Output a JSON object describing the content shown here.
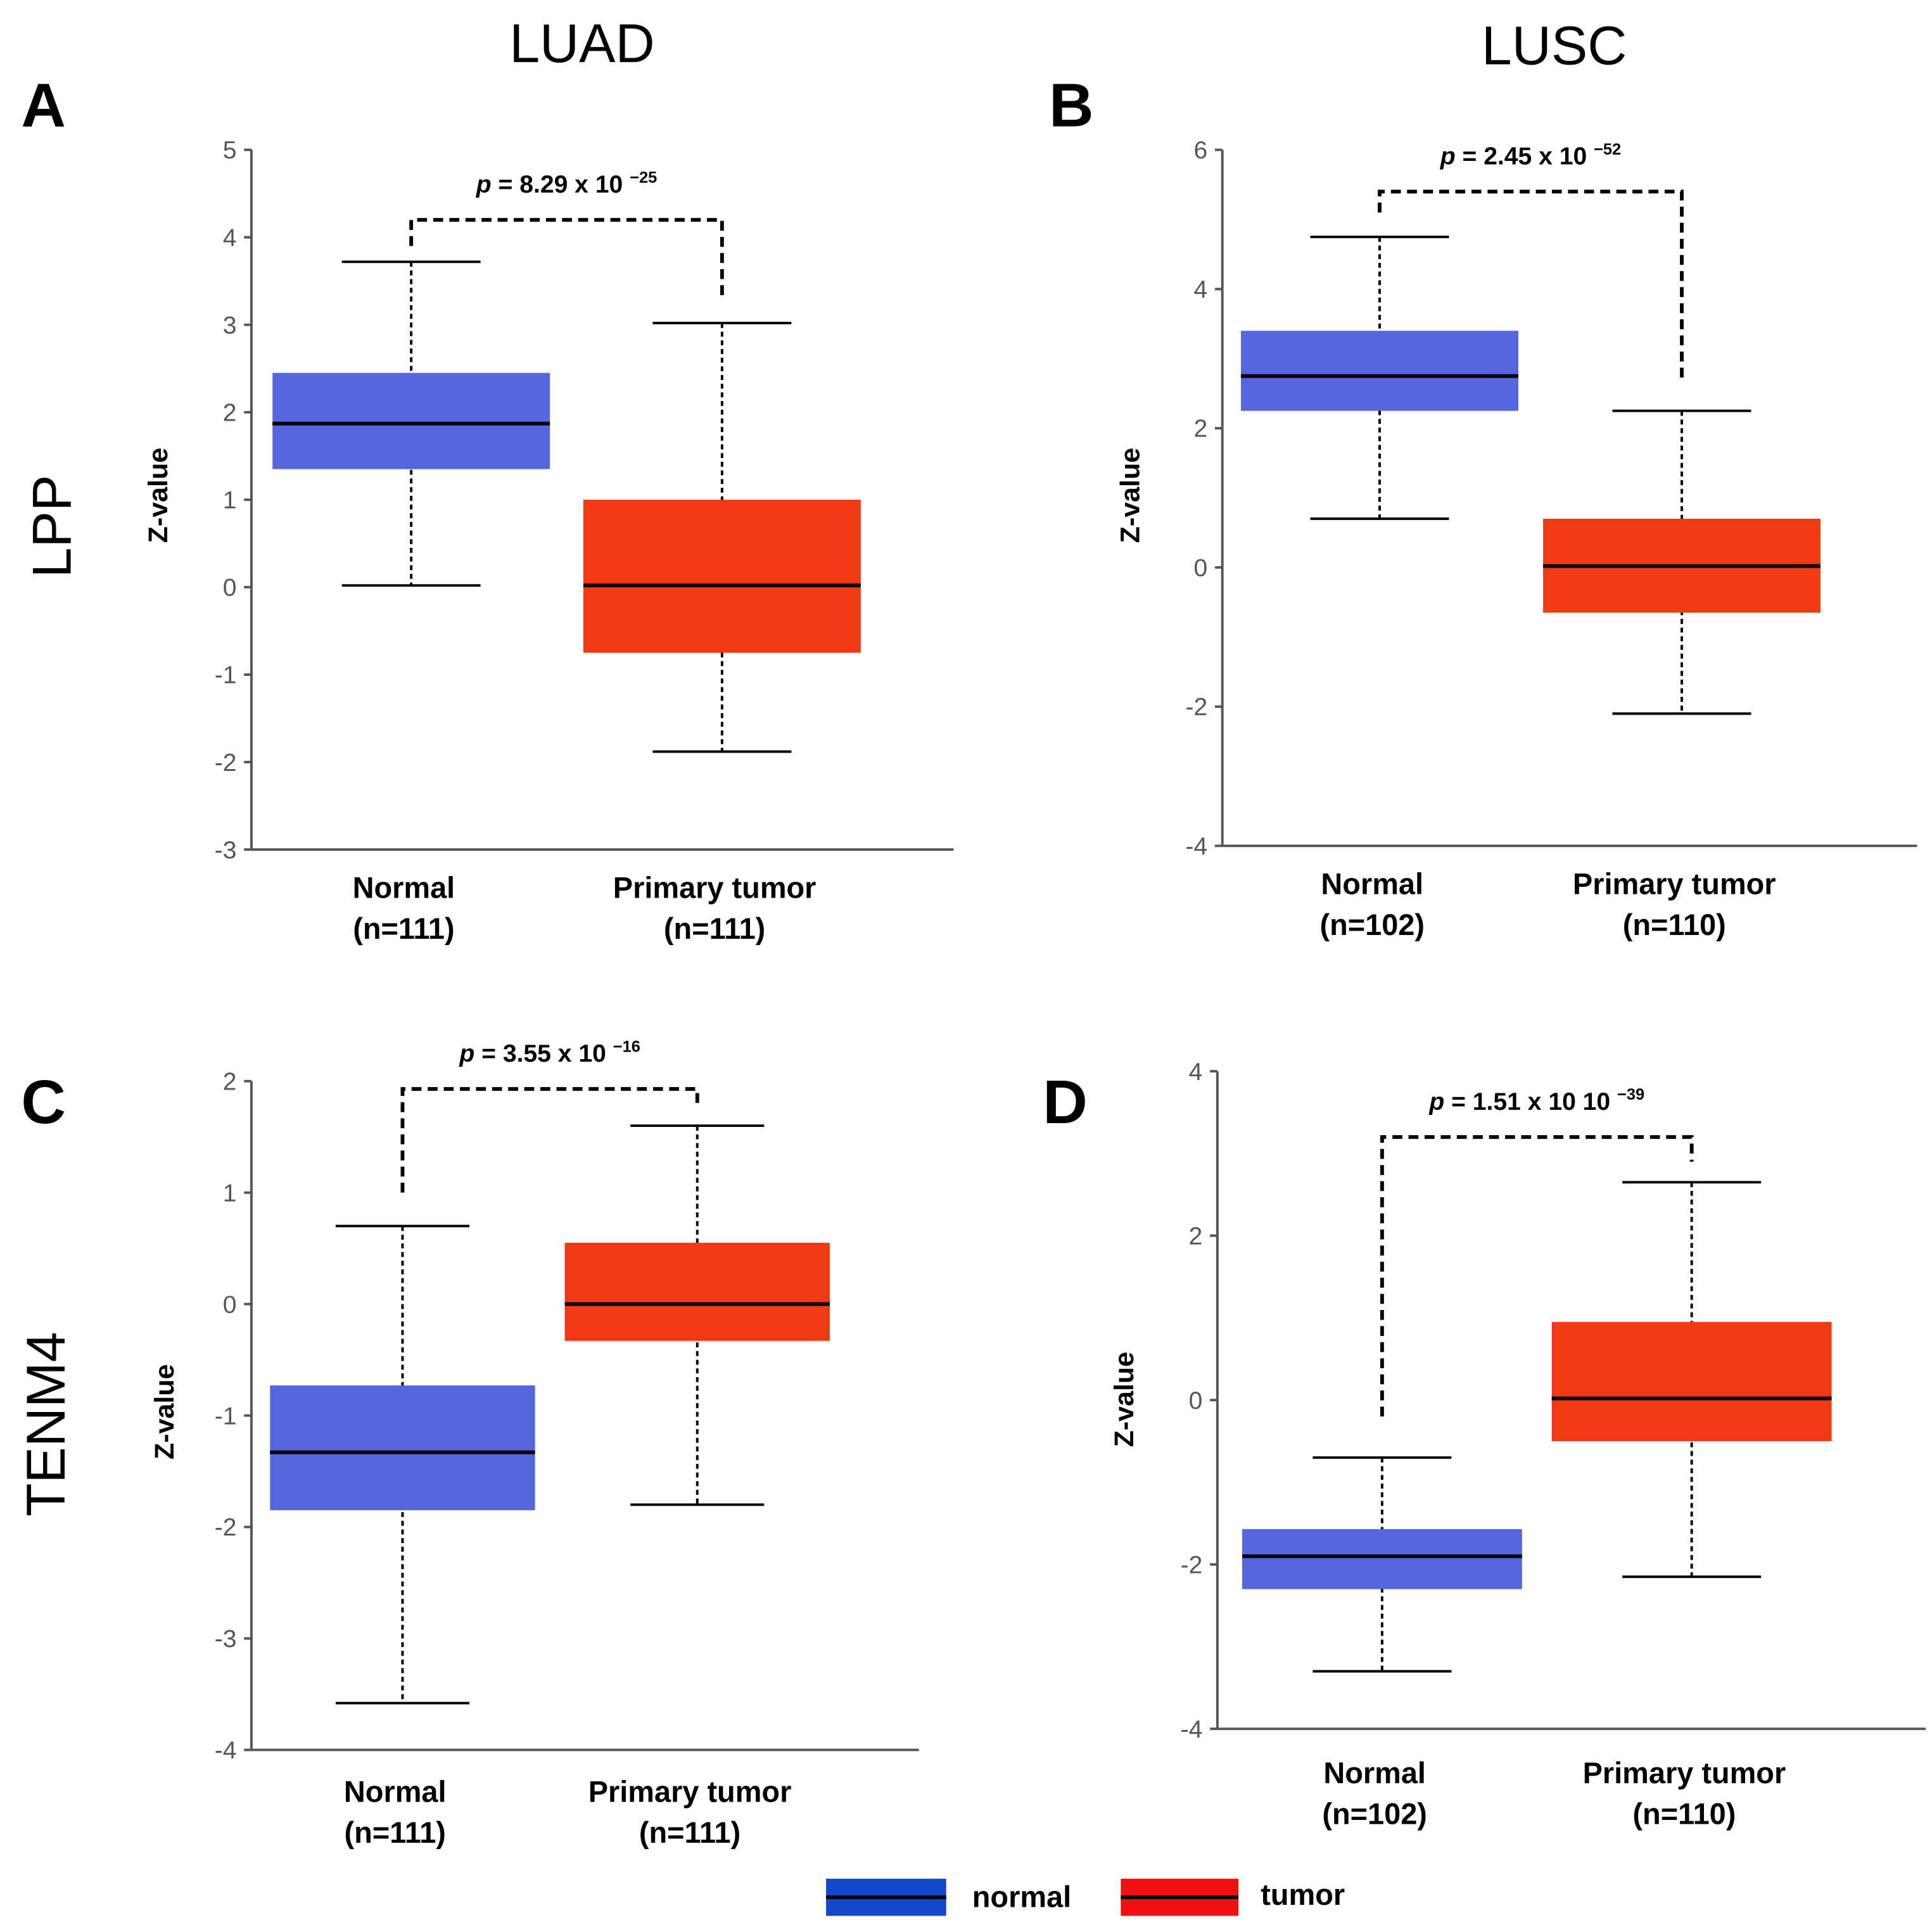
{
  "column_titles": [
    "LUAD",
    "LUSC"
  ],
  "row_titles": [
    "LPP",
    "TENM4"
  ],
  "legend": {
    "normal": "normal",
    "tumor": "tumor"
  },
  "colors": {
    "normal": "#5466e0",
    "tumor": "#f03a14",
    "legend_normal": "#1448c8",
    "legend_tumor": "#f01010"
  },
  "chart_data": [
    {
      "type": "box",
      "panel": "A",
      "gene": "LPP",
      "cancer": "LUAD",
      "ylabel": "Z-value",
      "ylim": [
        -3,
        5
      ],
      "yticks": [
        5,
        4,
        3,
        2,
        1,
        0,
        -1,
        -2,
        -3
      ],
      "p_value": {
        "prefix": "p",
        "text": " =  8.29 x 10 ",
        "exp": "−25"
      },
      "categories": [
        {
          "name": "Normal",
          "n": "(n=111)"
        },
        {
          "name": "Primary tumor",
          "n": "(n=111)"
        }
      ],
      "boxes": [
        {
          "max": 3.72,
          "q3": 2.45,
          "median": 1.87,
          "q1": 1.35,
          "min": 0.02
        },
        {
          "max": 3.02,
          "q3": 1.0,
          "median": 0.02,
          "q1": -0.75,
          "min": -1.88
        }
      ],
      "bracket": {
        "top": 4.2,
        "left_end": 3.9,
        "right_end": 3.3
      }
    },
    {
      "type": "box",
      "panel": "B",
      "gene": "LPP",
      "cancer": "LUSC",
      "ylabel": "Z-value",
      "ylim": [
        -4,
        6
      ],
      "yticks": [
        6,
        4,
        2,
        0,
        -2,
        -4
      ],
      "p_value": {
        "prefix": "p",
        "text": " = 2.45 x 10 ",
        "exp": "−52"
      },
      "categories": [
        {
          "name": "Normal",
          "n": "(n=102)"
        },
        {
          "name": "Primary tumor",
          "n": "(n=110)"
        }
      ],
      "boxes": [
        {
          "max": 4.75,
          "q3": 3.4,
          "median": 2.75,
          "q1": 2.25,
          "min": 0.7
        },
        {
          "max": 2.25,
          "q3": 0.7,
          "median": 0.02,
          "q1": -0.65,
          "min": -2.1
        }
      ],
      "bracket": {
        "top": 5.4,
        "left_end": 5.1,
        "right_end": 2.7
      }
    },
    {
      "type": "box",
      "panel": "C",
      "gene": "TENM4",
      "cancer": "LUAD",
      "ylabel": "Z-value",
      "ylim": [
        -4,
        2
      ],
      "yticks": [
        2,
        1,
        0,
        -1,
        -2,
        -3,
        -4
      ],
      "p_value": {
        "prefix": "p",
        "text": " = 3.55 x 10 ",
        "exp": "−16"
      },
      "categories": [
        {
          "name": "Normal",
          "n": "(n=111)"
        },
        {
          "name": "Primary tumor",
          "n": "(n=111)"
        }
      ],
      "boxes": [
        {
          "max": 0.7,
          "q3": -0.73,
          "median": -1.33,
          "q1": -1.85,
          "min": -3.58
        },
        {
          "max": 1.6,
          "q3": 0.55,
          "median": 0.0,
          "q1": -0.33,
          "min": -1.8
        }
      ],
      "bracket": {
        "top": 1.93,
        "left_end": 1.0,
        "right_end": 1.75
      }
    },
    {
      "type": "box",
      "panel": "D",
      "gene": "TENM4",
      "cancer": "LUSC",
      "ylabel": "Z-value",
      "ylim": [
        -4,
        4
      ],
      "yticks": [
        4,
        2,
        0,
        -2,
        -4
      ],
      "p_value": {
        "prefix": "p",
        "text": " = 1.51 x 10 10 ",
        "exp": "−39"
      },
      "categories": [
        {
          "name": "Normal",
          "n": "(n=102)"
        },
        {
          "name": "Primary tumor",
          "n": "(n=110)"
        }
      ],
      "boxes": [
        {
          "max": -0.7,
          "q3": -1.57,
          "median": -1.9,
          "q1": -2.3,
          "min": -3.3
        },
        {
          "max": 2.65,
          "q3": 0.95,
          "median": 0.02,
          "q1": -0.5,
          "min": -2.15
        }
      ],
      "bracket": {
        "top": 3.2,
        "left_end": -0.2,
        "right_end": 2.9
      }
    }
  ]
}
